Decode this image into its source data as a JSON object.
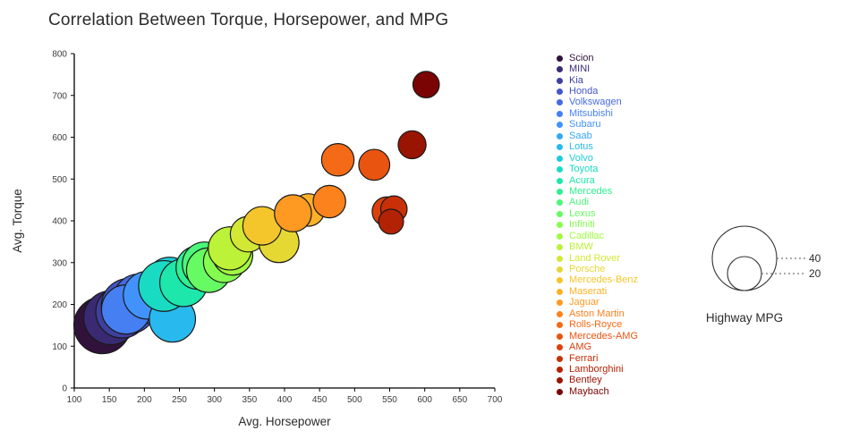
{
  "title": "Correlation Between Torque, Horsepower, and MPG",
  "chart_data": {
    "type": "scatter",
    "title": "Correlation Between Torque, Horsepower, and MPG",
    "xlabel": "Avg. Horsepower",
    "ylabel": "Avg. Torque",
    "xlim": [
      100,
      700
    ],
    "ylim": [
      0,
      800
    ],
    "x_ticks": [
      100,
      150,
      200,
      250,
      300,
      350,
      400,
      450,
      500,
      550,
      600,
      650,
      700
    ],
    "y_ticks": [
      0,
      100,
      200,
      300,
      400,
      500,
      600,
      700,
      800
    ],
    "grid": false,
    "legend_position": "right",
    "size_legend": {
      "title": "Highway MPG",
      "values": [
        40,
        20
      ]
    },
    "series": [
      {
        "name": "Scion",
        "color": "#30123b",
        "avg_horsepower": 140,
        "avg_torque": 150,
        "highway_mpg": 35
      },
      {
        "name": "MINI",
        "color": "#392a73",
        "avg_horsepower": 152,
        "avg_torque": 168,
        "highway_mpg": 33
      },
      {
        "name": "Kia",
        "color": "#3e3f9e",
        "avg_horsepower": 168,
        "avg_torque": 182,
        "highway_mpg": 32
      },
      {
        "name": "Honda",
        "color": "#4456c6",
        "avg_horsepower": 178,
        "avg_torque": 196,
        "highway_mpg": 34
      },
      {
        "name": "Volkswagen",
        "color": "#466be0",
        "avg_horsepower": 192,
        "avg_torque": 212,
        "highway_mpg": 31
      },
      {
        "name": "Mitsubishi",
        "color": "#467ff2",
        "avg_horsepower": 174,
        "avg_torque": 188,
        "highway_mpg": 30
      },
      {
        "name": "Subaru",
        "color": "#4193fb",
        "avg_horsepower": 204,
        "avg_torque": 222,
        "highway_mpg": 29
      },
      {
        "name": "Saab",
        "color": "#35a7f9",
        "avg_horsepower": 226,
        "avg_torque": 246,
        "highway_mpg": 27
      },
      {
        "name": "Lotus",
        "color": "#28baee",
        "avg_horsepower": 240,
        "avg_torque": 165,
        "highway_mpg": 28
      },
      {
        "name": "Volvo",
        "color": "#1ecbda",
        "avg_horsepower": 236,
        "avg_torque": 256,
        "highway_mpg": 29
      },
      {
        "name": "Toyota",
        "color": "#19dbc3",
        "avg_horsepower": 228,
        "avg_torque": 244,
        "highway_mpg": 31
      },
      {
        "name": "Acura",
        "color": "#1de7ab",
        "avg_horsepower": 256,
        "avg_torque": 252,
        "highway_mpg": 29
      },
      {
        "name": "Mercedes",
        "color": "#2ff092",
        "avg_horsepower": 276,
        "avg_torque": 288,
        "highway_mpg": 26
      },
      {
        "name": "Audi",
        "color": "#4af77a",
        "avg_horsepower": 286,
        "avg_torque": 296,
        "highway_mpg": 27
      },
      {
        "name": "Lexus",
        "color": "#66fb63",
        "avg_horsepower": 292,
        "avg_torque": 282,
        "highway_mpg": 27
      },
      {
        "name": "Infiniti",
        "color": "#85fd4f",
        "avg_horsepower": 314,
        "avg_torque": 302,
        "highway_mpg": 25
      },
      {
        "name": "Cadillac",
        "color": "#a2fa41",
        "avg_horsepower": 326,
        "avg_torque": 318,
        "highway_mpg": 24
      },
      {
        "name": "BMW",
        "color": "#bcf237",
        "avg_horsepower": 322,
        "avg_torque": 334,
        "highway_mpg": 26
      },
      {
        "name": "Land Rover",
        "color": "#d3e835",
        "avg_horsepower": 348,
        "avg_torque": 368,
        "highway_mpg": 21
      },
      {
        "name": "Porsche",
        "color": "#e6d833",
        "avg_horsepower": 392,
        "avg_torque": 348,
        "highway_mpg": 24
      },
      {
        "name": "Mercedes-Benz",
        "color": "#f4c62c",
        "avg_horsepower": 368,
        "avg_torque": 388,
        "highway_mpg": 23
      },
      {
        "name": "Maserati",
        "color": "#fcb126",
        "avg_horsepower": 434,
        "avg_torque": 426,
        "highway_mpg": 19
      },
      {
        "name": "Jaguar",
        "color": "#fe9a22",
        "avg_horsepower": 412,
        "avg_torque": 418,
        "highway_mpg": 22
      },
      {
        "name": "Aston Martin",
        "color": "#fb821c",
        "avg_horsepower": 464,
        "avg_torque": 446,
        "highway_mpg": 19
      },
      {
        "name": "Rolls-Royce",
        "color": "#f46a16",
        "avg_horsepower": 476,
        "avg_torque": 546,
        "highway_mpg": 19
      },
      {
        "name": "Mercedes-AMG",
        "color": "#e95410",
        "avg_horsepower": 528,
        "avg_torque": 534,
        "highway_mpg": 18
      },
      {
        "name": "AMG",
        "color": "#db400b",
        "avg_horsepower": 546,
        "avg_torque": 422,
        "highway_mpg": 17
      },
      {
        "name": "Ferrari",
        "color": "#c93007",
        "avg_horsepower": 556,
        "avg_torque": 428,
        "highway_mpg": 15
      },
      {
        "name": "Lamborghini",
        "color": "#b32204",
        "avg_horsepower": 552,
        "avg_torque": 398,
        "highway_mpg": 14
      },
      {
        "name": "Bentley",
        "color": "#991402",
        "avg_horsepower": 582,
        "avg_torque": 582,
        "highway_mpg": 16
      },
      {
        "name": "Maybach",
        "color": "#7a0403",
        "avg_horsepower": 602,
        "avg_torque": 726,
        "highway_mpg": 15
      }
    ]
  },
  "colors": {
    "axis": "#000000",
    "tick_text": "#3b3b3b",
    "title_text": "#2b2b2b",
    "bubble_stroke": "#1a1a1a"
  }
}
